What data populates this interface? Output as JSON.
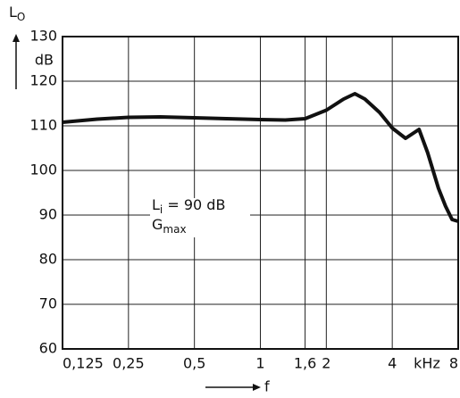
{
  "chart_data": {
    "type": "line",
    "ylabel": "L",
    "ylabel_sub": "O",
    "yunit": "dB",
    "xlabel": "f",
    "xunit": "kHz",
    "annotation": {
      "line1": "L",
      "line1_sub": "i",
      "line1_rest": " = 90 dB",
      "line2": "G",
      "line2_sub": "max"
    },
    "xscale": "log",
    "xlim": [
      0.125,
      8
    ],
    "ylim": [
      60,
      130
    ],
    "xticks": [
      {
        "value": 0.125,
        "label": "0,125"
      },
      {
        "value": 0.25,
        "label": "0,25"
      },
      {
        "value": 0.5,
        "label": "0,5"
      },
      1,
      {
        "value": 1.6,
        "label": "1,6"
      },
      2,
      4,
      8
    ],
    "yticks": [
      60,
      70,
      80,
      90,
      100,
      110,
      120,
      130
    ],
    "grid": true,
    "series": [
      {
        "color": "#111111",
        "x": [
          0.125,
          0.18,
          0.25,
          0.35,
          0.5,
          0.7,
          1,
          1.3,
          1.6,
          2,
          2.4,
          2.7,
          3,
          3.5,
          4,
          4.6,
          5.3,
          5.8,
          6.5,
          7,
          7.5,
          8
        ],
        "values": [
          110.8,
          111.5,
          111.9,
          112,
          111.8,
          111.6,
          111.4,
          111.3,
          111.6,
          113.5,
          116,
          117.2,
          116,
          113,
          109.5,
          107.2,
          109.2,
          104,
          96,
          92,
          89,
          88.6
        ]
      }
    ]
  }
}
